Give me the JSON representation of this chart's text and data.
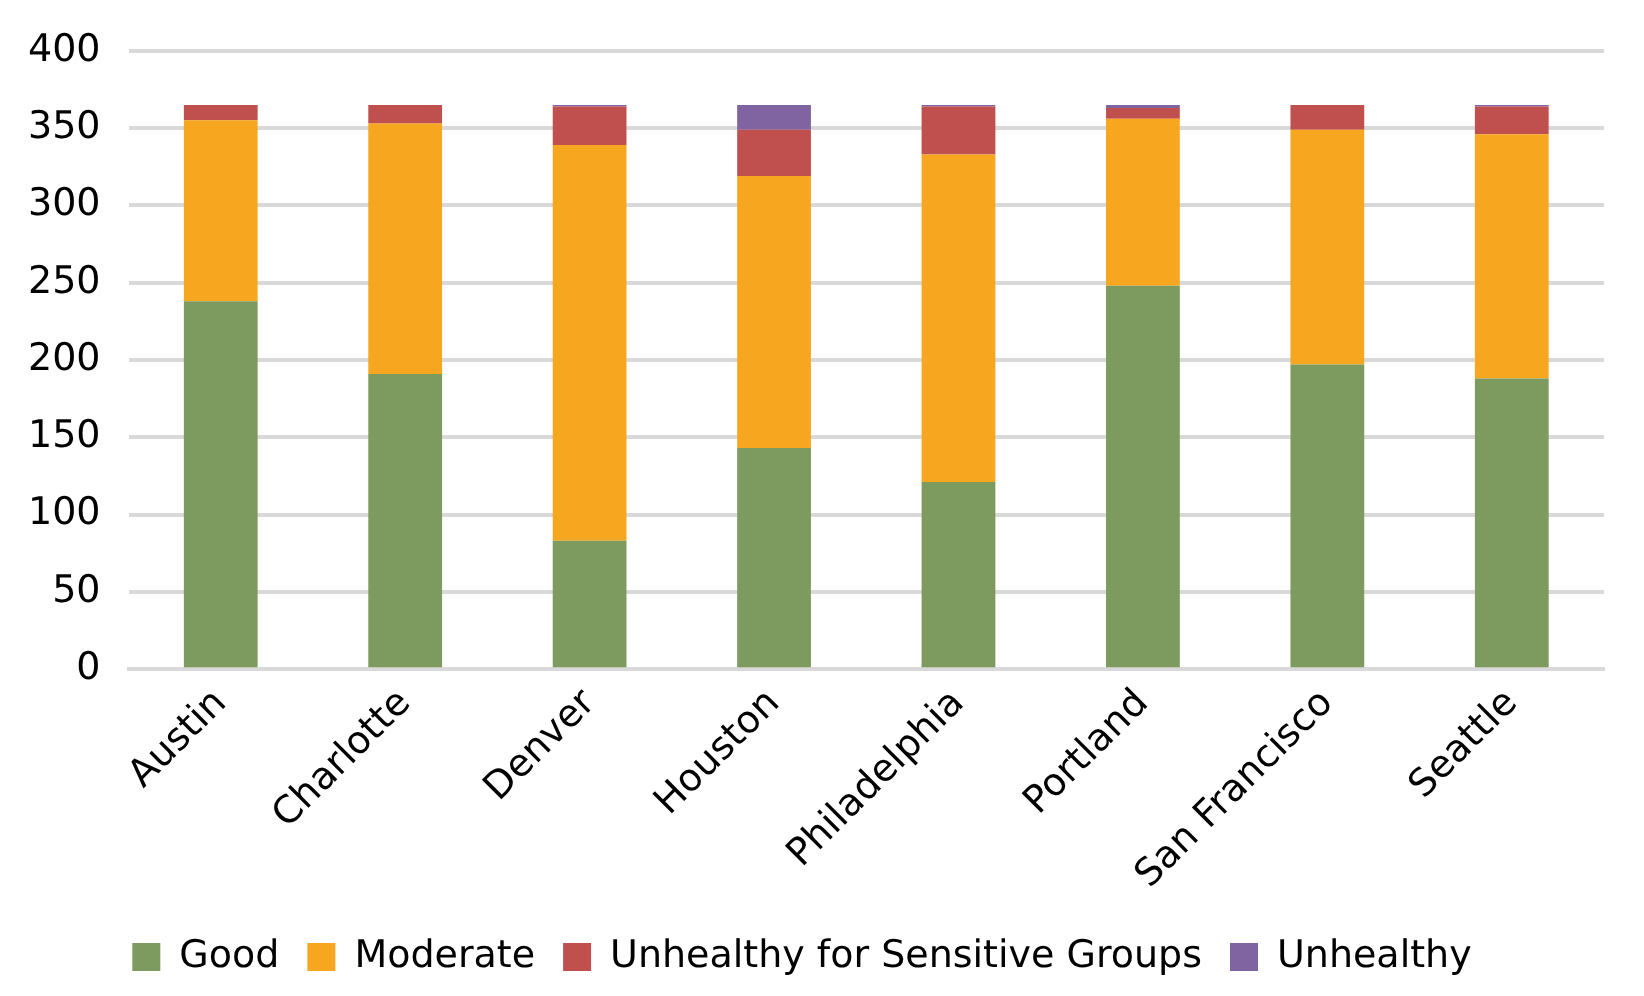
{
  "chart_data": {
    "type": "bar",
    "stacked": true,
    "categories": [
      "Austin",
      "Charlotte",
      "Denver",
      "Houston",
      "Philadelphia",
      "Portland",
      "San Francisco",
      "Seattle"
    ],
    "series": [
      {
        "name": "Good",
        "color": "#7d9b5f",
        "values": [
          238,
          191,
          83,
          143,
          121,
          248,
          197,
          188
        ]
      },
      {
        "name": "Moderate",
        "color": "#f6a71f",
        "values": [
          117,
          162,
          256,
          176,
          212,
          108,
          152,
          158
        ]
      },
      {
        "name": "Unhealthy for Sensitive Groups",
        "color": "#c0504d",
        "values": [
          10,
          12,
          25,
          30,
          31,
          7,
          16,
          18
        ]
      },
      {
        "name": "Unhealthy",
        "color": "#8064a2",
        "values": [
          0,
          0,
          1,
          16,
          1,
          2,
          0,
          1
        ]
      }
    ],
    "ylim": [
      0,
      400
    ],
    "yticks": [
      0,
      50,
      100,
      150,
      200,
      250,
      300,
      350,
      400
    ],
    "grid": "y",
    "legend": "bottom"
  }
}
